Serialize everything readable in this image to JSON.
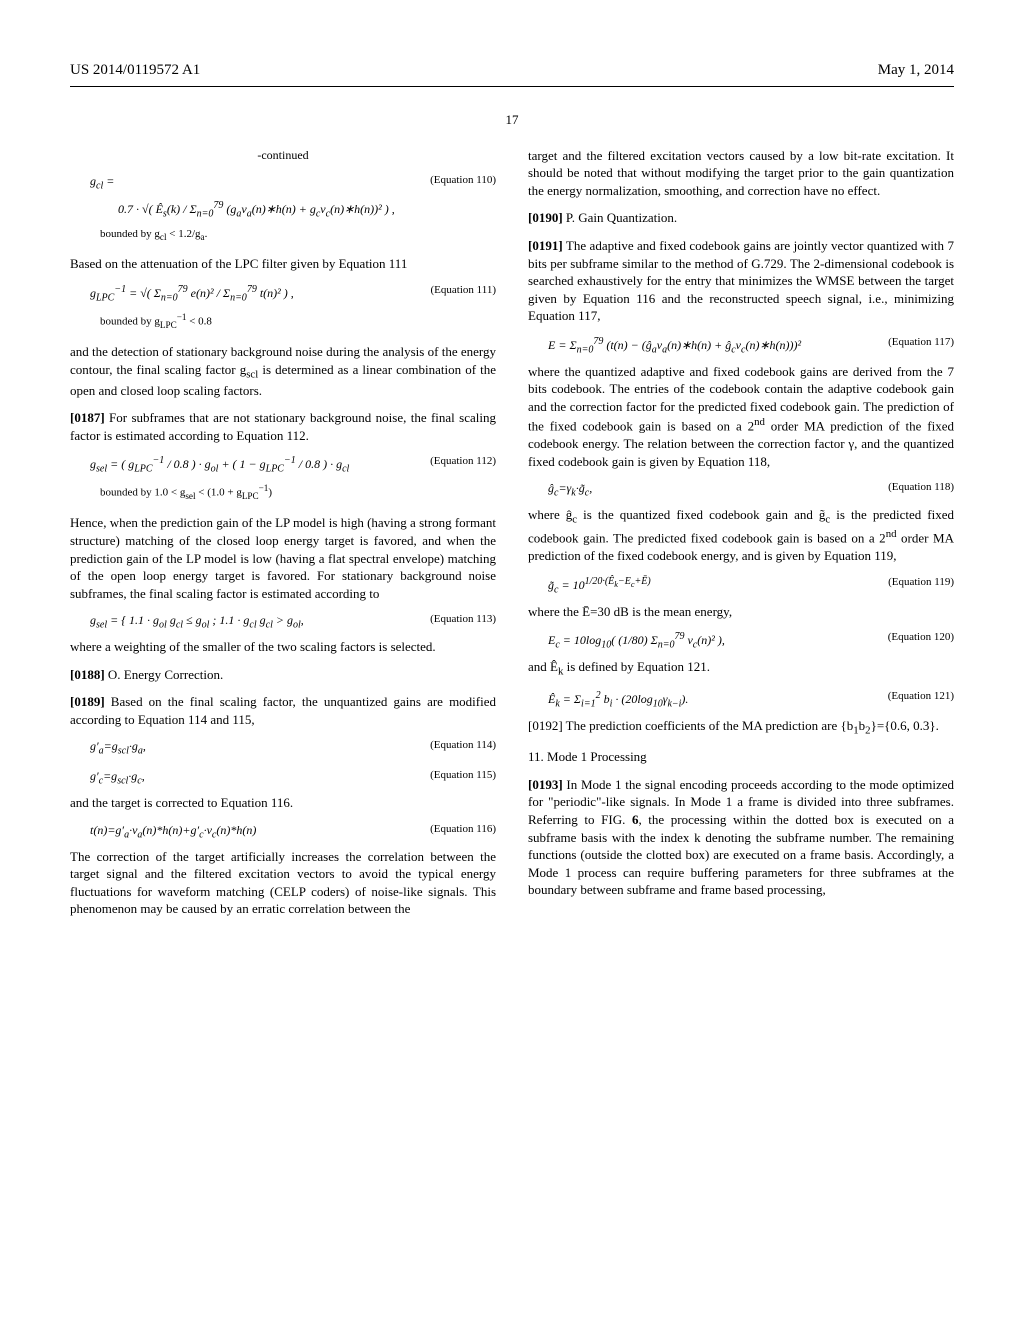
{
  "header": {
    "pub_number": "US 2014/0119572 A1",
    "date": "May 1, 2014",
    "page": "17"
  },
  "left_col": {
    "continued": "-continued",
    "eq110": {
      "sym": "g<sub>cl</sub> =",
      "body": "0.7 · √( Ê<sub>s</sub>(k) / Σ<sub>n=0</sub><sup>79</sup> (g<sub>a</sub>v<sub>a</sub>(n)∗h(n) + g<sub>c</sub>v<sub>c</sub>(n)∗h(n))² ) ,",
      "label": "(Equation 110)",
      "bound": "bounded by g<sub>cl</sub> < 1.2/g<sub>a</sub>."
    },
    "p_after110": "Based on the attenuation of the LPC filter given by Equation 111",
    "eq111": {
      "sym": "g<sub>LPC</sub><sup>−1</sup> =",
      "body": "√( Σ<sub>n=0</sub><sup>79</sup> e(n)² / Σ<sub>n=0</sub><sup>79</sup> t(n)² ) ,",
      "label": "(Equation 111)",
      "bound": "bounded by g<sub>LPC</sub><sup>−1</sup> < 0.8"
    },
    "p_after111": "and the detection of stationary background noise during the analysis of the energy contour, the final scaling factor g<sub>scl</sub> is determined as a linear combination of the open and closed loop scaling factors.",
    "p0187": "[0187]  For subframes that are not stationary background noise, the final scaling factor is estimated according to Equation 112.",
    "eq112": {
      "sym": "g<sub>sel</sub> =",
      "body": "( g<sub>LPC</sub><sup>−1</sup> / 0.8 ) · g<sub>ol</sub> + ( 1 − g<sub>LPC</sub><sup>−1</sup> / 0.8 ) · g<sub>cl</sub>",
      "label": "(Equation 112)",
      "bound": "bounded by 1.0 < g<sub>sel</sub> < (1.0 + g<sub>LPC</sub><sup>−1</sup>)"
    },
    "p_after112": "Hence, when the prediction gain of the LP model is high (having a strong formant structure) matching of the closed loop energy target is favored, and when the prediction gain of the LP model is low (having a flat spectral envelope) matching of the open loop energy target is favored. For stationary background noise subframes, the final scaling factor is estimated according to",
    "eq113": {
      "sym": "g<sub>sel</sub> =",
      "body": "{ 1.1 · g<sub>ol</sub>   g<sub>cl</sub> ≤ g<sub>ol</sub> ; 1.1 · g<sub>cl</sub>   g<sub>cl</sub> > g<sub>ol</sub>,",
      "label": "(Equation 113)"
    },
    "p_after113": "where a weighting of the smaller of the two scaling factors is selected.",
    "p0188": "[0188]  O. Energy Correction.",
    "p0189": "[0189]  Based on the final scaling factor, the unquantized gains are modified according to Equation 114 and 115,",
    "eq114": {
      "body": "g′<sub>a</sub>=g<sub>scl</sub>·g<sub>a</sub>,",
      "label": "(Equation 114)"
    },
    "eq115": {
      "body": "g′<sub>c</sub>=g<sub>scl</sub>·g<sub>c</sub>,",
      "label": "(Equation 115)"
    },
    "p_after115": "and the target is corrected to Equation 116.",
    "eq116": {
      "body": "t(n)=g′<sub>a</sub>·v<sub>a</sub>(n)*h(n)+g′<sub>c</sub>·v<sub>c</sub>(n)*h(n)",
      "label": "(Equation 116)"
    },
    "p_after116": "The correction of the target artificially increases the correlation between the target signal and the filtered excitation vectors to avoid the typical energy fluctuations for waveform matching (CELP coders) of noise-like signals. This phenomenon may be caused by an erratic correlation between the"
  },
  "right_col": {
    "p_top": "target and the filtered excitation vectors caused by a low bit-rate excitation. It should be noted that without modifying the target prior to the gain quantization the energy normalization, smoothing, and correction have no effect.",
    "p0190": "[0190]  P. Gain Quantization.",
    "p0191": "[0191]  The adaptive and fixed codebook gains are jointly vector quantized with 7 bits per subframe similar to the method of G.729. The 2-dimensional codebook is searched exhaustively for the entry that minimizes the WMSE between the target given by Equation 116 and the reconstructed speech signal, i.e., minimizing Equation 117,",
    "eq117": {
      "sym": "E =",
      "body": "Σ<sub>n=0</sub><sup>79</sup> (t(n) − (ĝ<sub>a</sub>v<sub>a</sub>(n)∗h(n) + ĝ<sub>c</sub>v<sub>c</sub>(n)∗h(n)))²",
      "label": "(Equation 117)"
    },
    "p_after117": "where the quantized adaptive and fixed codebook gains are derived from the 7 bits codebook. The entries of the codebook contain the adaptive codebook gain and the correction factor for the predicted fixed codebook gain. The prediction of the fixed codebook gain is based on a 2<sup>nd</sup> order MA prediction of the fixed codebook energy. The relation between the correction factor γ, and the quantized fixed codebook gain is given by Equation 118,",
    "eq118": {
      "body": "ĝ<sub>c</sub>=γ<sub>k</sub>·g̃<sub>c</sub>,",
      "label": "(Equation 118)"
    },
    "p_after118": "where ĝ<sub>c</sub> is the quantized fixed codebook gain and g̃<sub>c</sub> is the predicted fixed codebook gain. The predicted fixed codebook gain is based on a 2<sup>nd</sup> order MA prediction of the fixed codebook energy, and is given by Equation 119,",
    "eq119": {
      "sym": "g̃<sub>c</sub> =",
      "body": "10<sup>1/20·(Ê<sub>k</sub>−E<sub>c</sub>+Ē)</sup>",
      "label": "(Equation 119)"
    },
    "p_after119": "where the Ē=30 dB is the mean energy,",
    "eq120": {
      "sym": "E<sub>c</sub> =",
      "body": "10log<sub>10</sub>( (1/80) Σ<sub>n=0</sub><sup>79</sup> v<sub>c</sub>(n)² ),",
      "label": "(Equation 120)"
    },
    "p_after120": "and Ê<sub>k</sub> is defined by Equation 121.",
    "eq121": {
      "sym": "Ê<sub>k</sub> =",
      "body": "Σ<sub>i=1</sub><sup>2</sup> b<sub>i</sub> · (20log<sub>10</sub>γ<sub>k−i</sub>).",
      "label": "(Equation 121)"
    },
    "p0192": "[0192]  The prediction coefficients of the MA prediction are {b<sub>1</sub>b<sub>2</sub>}={0.6, 0.3}.",
    "sec11": "11. Mode 1 Processing",
    "p0193": "[0193]  In Mode 1 the signal encoding proceeds according to the mode optimized for \"periodic\"-like signals. In Mode 1 a frame is divided into three subframes. Referring to FIG. 6, the processing within the dotted box is executed on a subframe basis with the index k denoting the subframe number. The remaining functions (outside the clotted box) are executed on a frame basis. Accordingly, a Mode 1 process can require buffering parameters for three subframes at the boundary between subframe and frame based processing,"
  }
}
